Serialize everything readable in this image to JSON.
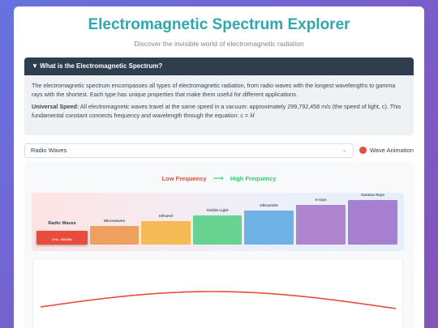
{
  "header": {
    "title": "Electromagnetic Spectrum Explorer",
    "subtitle": "Discover the invisible world of electromagnetic radiation"
  },
  "info": {
    "heading": "▼ What is the Electromagnetic Spectrum?",
    "paragraph": "The electromagnetic spectrum encompasses all types of electromagnetic radiation, from radio waves with the longest wavelengths to gamma rays with the shortest. Each type has unique properties that make them useful for different applications.",
    "speed_label": "Universal Speed:",
    "speed_text": " All electromagnetic waves travel at the same speed in a vacuum: approximately 299,792,458 m/s (the speed of light, c). This fundamental constant connects frequency and wavelength through the equation: c = λf"
  },
  "controls": {
    "selected_wave": "Radio Waves",
    "toggle_label": "Wave Animation",
    "toggle_color": "#e74c3c"
  },
  "spectrum": {
    "low_label": "Low Frequency",
    "arrow": "⟶",
    "high_label": "High Frequency",
    "bands": [
      {
        "label": "Radio Waves",
        "range": "3 Hz - 300 GHz",
        "color": "#e74c3c",
        "selected": true
      },
      {
        "label": "Microwaves",
        "color": "#eea05e"
      },
      {
        "label": "Infrared",
        "color": "#f5b955"
      },
      {
        "label": "Visible Light",
        "color": "#68d391"
      },
      {
        "label": "Ultraviolet",
        "color": "#6fb3e6"
      },
      {
        "label": "X-rays",
        "color": "#b085cf"
      },
      {
        "label": "Gamma Rays",
        "color": "#a77fcf"
      }
    ]
  },
  "wave": {
    "color": "#e74c3c"
  }
}
